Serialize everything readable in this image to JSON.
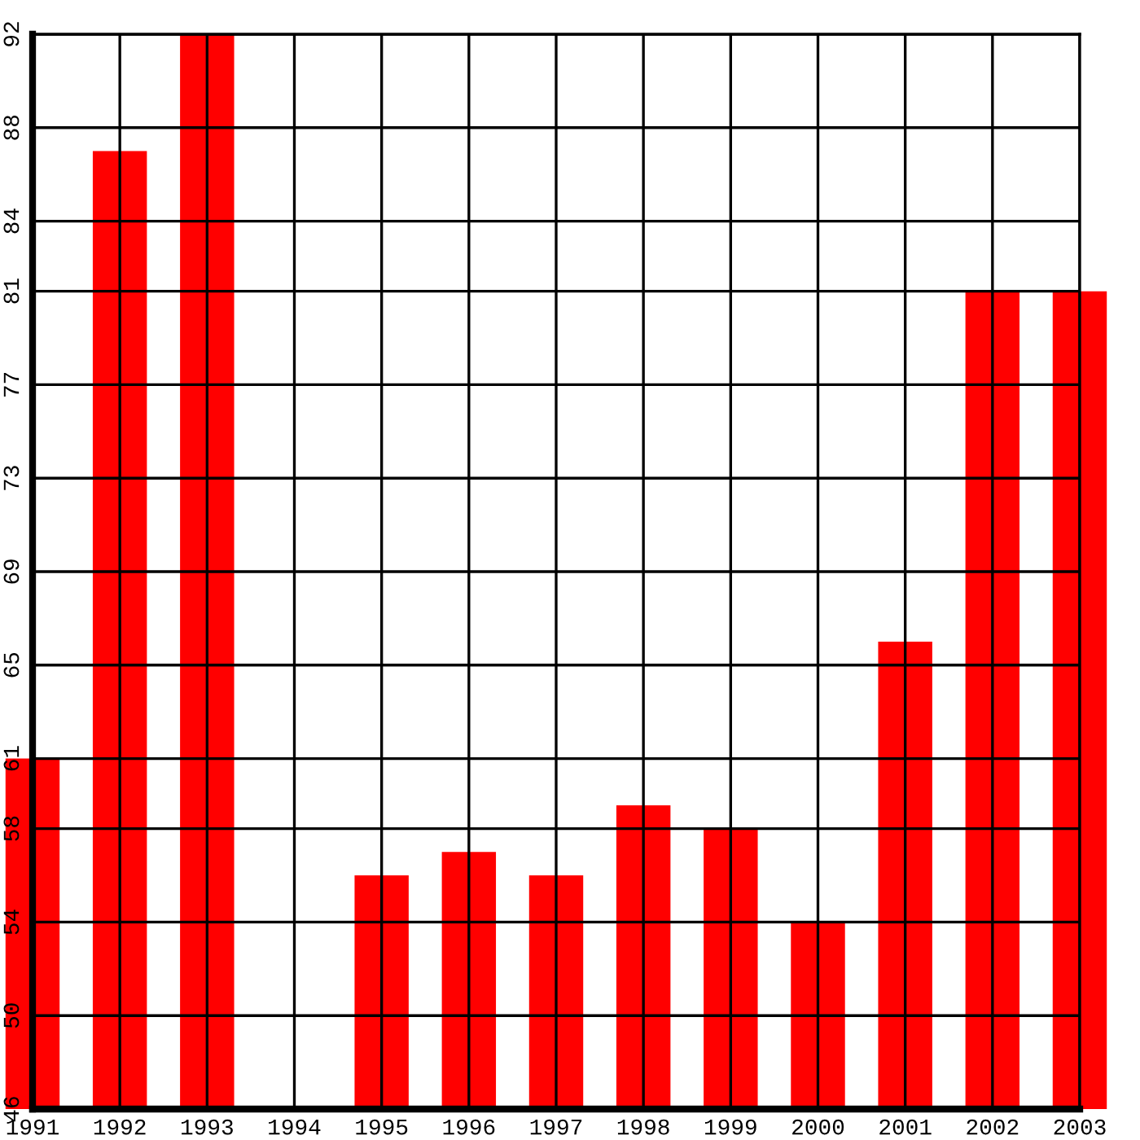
{
  "chart_data": {
    "type": "bar",
    "categories": [
      "1991",
      "1992",
      "1993",
      "1994",
      "1995",
      "1996",
      "1997",
      "1998",
      "1999",
      "2000",
      "2001",
      "2002",
      "2003"
    ],
    "values": [
      61,
      87,
      92,
      null,
      56,
      57,
      56,
      59,
      58,
      54,
      66,
      81,
      81
    ],
    "color": "#ff0000",
    "ylim": [
      46,
      92
    ],
    "yticks": [
      46,
      50,
      54,
      58,
      61,
      65,
      69,
      73,
      77,
      81,
      84,
      88,
      92
    ],
    "grid": true
  }
}
